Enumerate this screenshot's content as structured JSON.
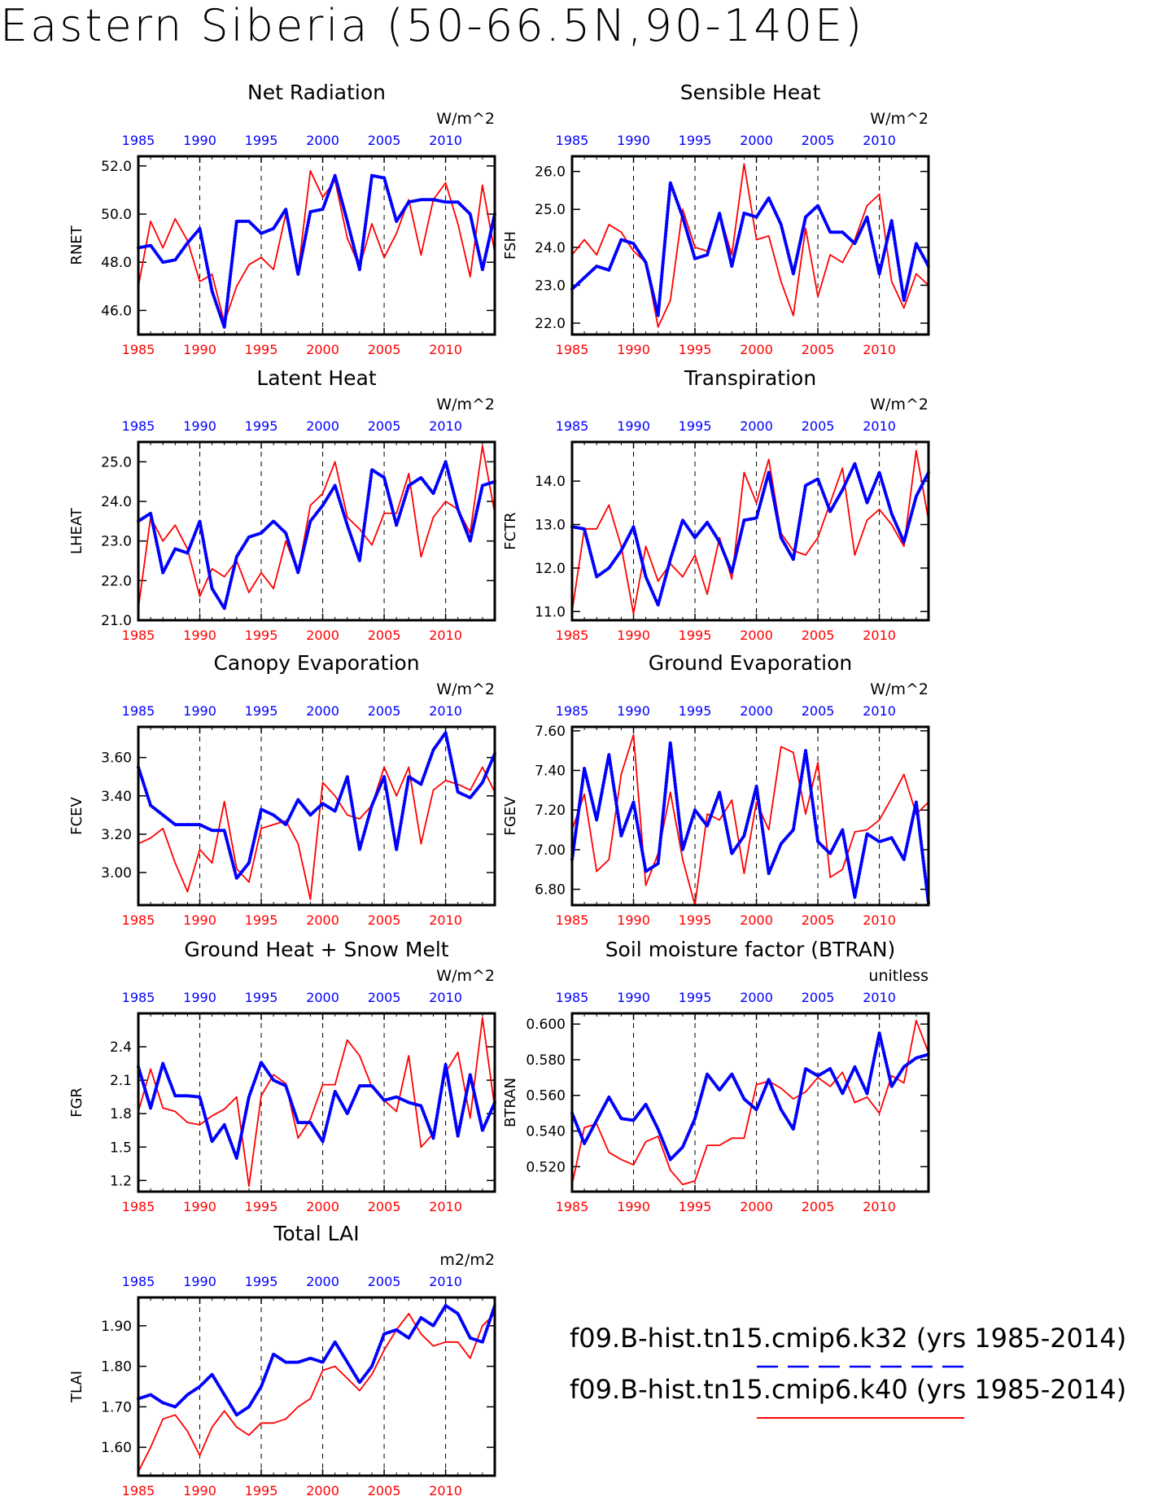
{
  "figure": {
    "title": "Eastern Siberia (50-66.5N,90-140E)",
    "colors": {
      "case1": "#0000ff",
      "case2": "#ff0000"
    },
    "legend": [
      {
        "label": "f09.B-hist.tn15.cmip6.k32 (yrs 1985-2014)",
        "color": "#0000ff",
        "style": "dashed"
      },
      {
        "label": "f09.B-hist.tn15.cmip6.k40 (yrs 1985-2014)",
        "color": "#ff0000",
        "style": "solid"
      }
    ]
  },
  "chart_data": [
    {
      "type": "line",
      "title": "Net Radiation",
      "ylabel": "RNET",
      "units": "W/m^2",
      "ylim": [
        45,
        52.4
      ],
      "yticks": [
        46.0,
        48.0,
        50.0,
        52.0
      ],
      "ytick_labels": [
        "46.0",
        "48.0",
        "50.0",
        "52.0"
      ],
      "xlim": [
        1985,
        2014
      ],
      "xticks": [
        1985,
        1990,
        1995,
        2000,
        2005,
        2010
      ],
      "grid": "dashed at 5-year marks",
      "series": [
        {
          "color": "#0000ff",
          "values": [
            48.6,
            48.7,
            48.0,
            48.1,
            48.8,
            49.4,
            46.8,
            45.3,
            49.7,
            49.7,
            49.2,
            49.4,
            50.2,
            47.5,
            50.1,
            50.2,
            51.6,
            49.7,
            47.7,
            51.6,
            51.5,
            49.7,
            50.5,
            50.6,
            50.6,
            50.5,
            50.5,
            50.0,
            47.7,
            50.0
          ]
        },
        {
          "color": "#ff0000",
          "values": [
            47.0,
            49.7,
            48.6,
            49.8,
            48.9,
            47.2,
            47.5,
            45.5,
            47.0,
            47.9,
            48.2,
            47.7,
            50.0,
            47.6,
            51.8,
            50.7,
            51.4,
            49.0,
            47.8,
            49.6,
            48.2,
            49.2,
            50.6,
            48.3,
            50.6,
            51.3,
            49.6,
            47.4,
            51.2,
            48.4
          ]
        }
      ]
    },
    {
      "type": "line",
      "title": "Sensible Heat",
      "ylabel": "FSH",
      "units": "W/m^2",
      "ylim": [
        21.7,
        26.4
      ],
      "yticks": [
        22.0,
        23.0,
        24.0,
        25.0,
        26.0
      ],
      "ytick_labels": [
        "22.0",
        "23.0",
        "24.0",
        "25.0",
        "26.0"
      ],
      "xlim": [
        1985,
        2014
      ],
      "xticks": [
        1985,
        1990,
        1995,
        2000,
        2005,
        2010
      ],
      "grid": "dashed at 5-year marks",
      "series": [
        {
          "color": "#0000ff",
          "values": [
            22.9,
            23.2,
            23.5,
            23.4,
            24.2,
            24.1,
            23.6,
            22.2,
            25.7,
            24.8,
            23.7,
            23.8,
            24.9,
            23.5,
            24.9,
            24.8,
            25.3,
            24.6,
            23.3,
            24.8,
            25.1,
            24.4,
            24.4,
            24.1,
            24.8,
            23.3,
            24.7,
            22.6,
            24.1,
            23.5
          ]
        },
        {
          "color": "#ff0000",
          "values": [
            23.8,
            24.2,
            23.8,
            24.6,
            24.4,
            23.9,
            23.6,
            21.9,
            22.6,
            25.0,
            24.0,
            23.9,
            24.9,
            23.8,
            26.2,
            24.2,
            24.3,
            23.1,
            22.2,
            24.5,
            22.7,
            23.8,
            23.6,
            24.2,
            25.1,
            25.4,
            23.1,
            22.4,
            23.3,
            23.0
          ]
        }
      ]
    },
    {
      "type": "line",
      "title": "Latent Heat",
      "ylabel": "LHEAT",
      "units": "W/m^2",
      "ylim": [
        21,
        25.5
      ],
      "yticks": [
        21.0,
        22.0,
        23.0,
        24.0,
        25.0
      ],
      "ytick_labels": [
        "21.0",
        "22.0",
        "23.0",
        "24.0",
        "25.0"
      ],
      "xlim": [
        1985,
        2014
      ],
      "xticks": [
        1985,
        1990,
        1995,
        2000,
        2005,
        2010
      ],
      "grid": "dashed at 5-year marks",
      "series": [
        {
          "color": "#0000ff",
          "values": [
            23.5,
            23.7,
            22.2,
            22.8,
            22.7,
            23.5,
            21.8,
            21.3,
            22.6,
            23.1,
            23.2,
            23.5,
            23.2,
            22.2,
            23.5,
            23.9,
            24.4,
            23.4,
            22.5,
            24.8,
            24.6,
            23.4,
            24.4,
            24.6,
            24.2,
            25.0,
            23.8,
            23.0,
            24.4,
            24.5
          ]
        },
        {
          "color": "#ff0000",
          "values": [
            21.3,
            23.6,
            23.0,
            23.4,
            22.8,
            21.6,
            22.3,
            22.1,
            22.5,
            21.7,
            22.2,
            21.8,
            23.0,
            22.2,
            23.9,
            24.2,
            25.0,
            23.6,
            23.3,
            22.9,
            23.7,
            23.7,
            24.7,
            22.6,
            23.6,
            24.0,
            23.8,
            23.2,
            25.4,
            23.7
          ]
        }
      ]
    },
    {
      "type": "line",
      "title": "Transpiration",
      "ylabel": "FCTR",
      "units": "W/m^2",
      "ylim": [
        10.8,
        14.9
      ],
      "yticks": [
        11.0,
        12.0,
        13.0,
        14.0
      ],
      "ytick_labels": [
        "11.0",
        "12.0",
        "13.0",
        "14.0"
      ],
      "xlim": [
        1985,
        2014
      ],
      "xticks": [
        1985,
        1990,
        1995,
        2000,
        2005,
        2010
      ],
      "grid": "dashed at 5-year marks",
      "series": [
        {
          "color": "#0000ff",
          "values": [
            12.95,
            12.9,
            11.8,
            12.0,
            12.4,
            12.95,
            11.8,
            11.15,
            12.2,
            13.1,
            12.7,
            13.05,
            12.6,
            11.9,
            13.1,
            13.15,
            14.2,
            12.7,
            12.2,
            13.9,
            14.05,
            13.3,
            13.8,
            14.4,
            13.5,
            14.2,
            13.25,
            12.6,
            13.65,
            14.2
          ]
        },
        {
          "color": "#ff0000",
          "values": [
            11.0,
            12.9,
            12.9,
            13.45,
            12.5,
            10.95,
            12.5,
            11.7,
            12.1,
            11.8,
            12.3,
            11.4,
            12.7,
            11.75,
            14.2,
            13.5,
            14.5,
            12.8,
            12.4,
            12.3,
            12.7,
            13.5,
            14.3,
            12.3,
            13.1,
            13.35,
            13.0,
            12.5,
            14.7,
            13.1
          ]
        }
      ]
    },
    {
      "type": "line",
      "title": "Canopy Evaporation",
      "ylabel": "FCEV",
      "units": "W/m^2",
      "ylim": [
        2.83,
        3.76
      ],
      "yticks": [
        3.0,
        3.2,
        3.4,
        3.6
      ],
      "ytick_labels": [
        "3.00",
        "3.20",
        "3.40",
        "3.60"
      ],
      "xlim": [
        1985,
        2014
      ],
      "xticks": [
        1985,
        1990,
        1995,
        2000,
        2005,
        2010
      ],
      "grid": "dashed at 5-year marks",
      "series": [
        {
          "color": "#0000ff",
          "values": [
            3.55,
            3.35,
            3.3,
            3.25,
            3.25,
            3.25,
            3.22,
            3.22,
            2.97,
            3.05,
            3.33,
            3.3,
            3.25,
            3.38,
            3.3,
            3.36,
            3.32,
            3.5,
            3.12,
            3.35,
            3.5,
            3.12,
            3.5,
            3.46,
            3.64,
            3.73,
            3.42,
            3.39,
            3.47,
            3.62
          ]
        },
        {
          "color": "#ff0000",
          "values": [
            3.15,
            3.18,
            3.23,
            3.05,
            2.9,
            3.12,
            3.05,
            3.37,
            3.02,
            2.95,
            3.23,
            3.25,
            3.27,
            3.15,
            2.86,
            3.47,
            3.4,
            3.3,
            3.28,
            3.35,
            3.55,
            3.4,
            3.55,
            3.15,
            3.43,
            3.48,
            3.46,
            3.43,
            3.55,
            3.42
          ]
        }
      ]
    },
    {
      "type": "line",
      "title": "Ground Evaporation",
      "ylabel": "FGEV",
      "units": "W/m^2",
      "ylim": [
        6.72,
        7.62
      ],
      "yticks": [
        6.8,
        7.0,
        7.2,
        7.4,
        7.6
      ],
      "ytick_labels": [
        "6.80",
        "7.00",
        "7.20",
        "7.40",
        "7.60"
      ],
      "xlim": [
        1985,
        2014
      ],
      "xticks": [
        1985,
        1990,
        1995,
        2000,
        2005,
        2010
      ],
      "grid": "dashed at 5-year marks",
      "series": [
        {
          "color": "#0000ff",
          "values": [
            6.95,
            7.41,
            7.15,
            7.48,
            7.07,
            7.24,
            6.89,
            6.93,
            7.54,
            7.0,
            7.2,
            7.12,
            7.29,
            6.98,
            7.07,
            7.32,
            6.88,
            7.03,
            7.1,
            7.5,
            7.04,
            6.98,
            7.1,
            6.76,
            7.08,
            7.04,
            7.06,
            6.95,
            7.24,
            6.73
          ]
        },
        {
          "color": "#ff0000",
          "values": [
            7.1,
            7.28,
            6.89,
            6.95,
            7.38,
            7.58,
            6.82,
            6.98,
            7.29,
            6.95,
            6.72,
            7.18,
            7.15,
            7.25,
            6.88,
            7.24,
            7.1,
            7.52,
            7.49,
            7.18,
            7.44,
            6.86,
            6.9,
            7.09,
            7.1,
            7.15,
            7.26,
            7.38,
            7.18,
            7.24
          ]
        }
      ]
    },
    {
      "type": "line",
      "title": "Ground Heat + Snow Melt",
      "ylabel": "FGR",
      "units": "W/m^2",
      "ylim": [
        1.1,
        2.7
      ],
      "yticks": [
        1.2,
        1.5,
        1.8,
        2.1,
        2.4
      ],
      "ytick_labels": [
        "1.2",
        "1.5",
        "1.8",
        "2.1",
        "2.4"
      ],
      "xlim": [
        1985,
        2014
      ],
      "xticks": [
        1985,
        1990,
        1995,
        2000,
        2005,
        2010
      ],
      "grid": "dashed at 5-year marks",
      "series": [
        {
          "color": "#0000ff",
          "values": [
            2.22,
            1.85,
            2.25,
            1.96,
            1.96,
            1.95,
            1.55,
            1.7,
            1.4,
            1.95,
            2.26,
            2.1,
            2.05,
            1.72,
            1.72,
            1.55,
            2.0,
            1.8,
            2.05,
            2.05,
            1.92,
            1.95,
            1.9,
            1.87,
            1.58,
            2.24,
            1.6,
            2.15,
            1.65,
            1.9
          ]
        },
        {
          "color": "#ff0000",
          "values": [
            1.82,
            2.2,
            1.85,
            1.82,
            1.72,
            1.7,
            1.78,
            1.84,
            1.95,
            1.15,
            1.96,
            2.15,
            2.07,
            1.58,
            1.75,
            2.06,
            2.06,
            2.46,
            2.32,
            2.04,
            1.92,
            1.82,
            2.32,
            1.5,
            1.62,
            2.17,
            2.35,
            1.76,
            2.66,
            1.85
          ]
        }
      ]
    },
    {
      "type": "line",
      "title": "Soil moisture factor (BTRAN)",
      "ylabel": "BTRAN",
      "units": "unitless",
      "ylim": [
        0.506,
        0.606
      ],
      "yticks": [
        0.52,
        0.54,
        0.56,
        0.58,
        0.6
      ],
      "ytick_labels": [
        "0.520",
        "0.540",
        "0.560",
        "0.580",
        "0.600"
      ],
      "xlim": [
        1985,
        2014
      ],
      "xticks": [
        1985,
        1990,
        1995,
        2000,
        2005,
        2010
      ],
      "grid": "dashed at 5-year marks",
      "series": [
        {
          "color": "#0000ff",
          "values": [
            0.55,
            0.533,
            0.546,
            0.559,
            0.547,
            0.546,
            0.555,
            0.541,
            0.524,
            0.531,
            0.547,
            0.572,
            0.563,
            0.572,
            0.558,
            0.552,
            0.569,
            0.552,
            0.541,
            0.575,
            0.571,
            0.575,
            0.561,
            0.576,
            0.561,
            0.595,
            0.565,
            0.576,
            0.581,
            0.583
          ]
        },
        {
          "color": "#ff0000",
          "values": [
            0.51,
            0.542,
            0.544,
            0.528,
            0.524,
            0.521,
            0.534,
            0.537,
            0.518,
            0.51,
            0.512,
            0.532,
            0.532,
            0.536,
            0.536,
            0.566,
            0.568,
            0.564,
            0.558,
            0.562,
            0.57,
            0.565,
            0.573,
            0.556,
            0.559,
            0.55,
            0.571,
            0.567,
            0.602,
            0.584
          ]
        }
      ]
    },
    {
      "type": "line",
      "title": "Total LAI",
      "ylabel": "TLAI",
      "units": "m2/m2",
      "ylim": [
        1.53,
        1.97
      ],
      "yticks": [
        1.6,
        1.7,
        1.8,
        1.9
      ],
      "ytick_labels": [
        "1.60",
        "1.70",
        "1.80",
        "1.90"
      ],
      "xlim": [
        1985,
        2014
      ],
      "xticks": [
        1985,
        1990,
        1995,
        2000,
        2005,
        2010
      ],
      "grid": "dashed at 5-year marks",
      "series": [
        {
          "color": "#0000ff",
          "values": [
            1.72,
            1.73,
            1.71,
            1.7,
            1.73,
            1.75,
            1.78,
            1.73,
            1.68,
            1.7,
            1.75,
            1.83,
            1.81,
            1.81,
            1.82,
            1.81,
            1.86,
            1.81,
            1.76,
            1.8,
            1.88,
            1.89,
            1.87,
            1.92,
            1.9,
            1.95,
            1.93,
            1.87,
            1.86,
            1.95
          ]
        },
        {
          "color": "#ff0000",
          "values": [
            1.54,
            1.6,
            1.67,
            1.68,
            1.64,
            1.58,
            1.65,
            1.69,
            1.65,
            1.63,
            1.66,
            1.66,
            1.67,
            1.7,
            1.72,
            1.79,
            1.8,
            1.77,
            1.74,
            1.78,
            1.84,
            1.89,
            1.93,
            1.88,
            1.85,
            1.86,
            1.86,
            1.82,
            1.9,
            1.93
          ]
        }
      ]
    }
  ]
}
